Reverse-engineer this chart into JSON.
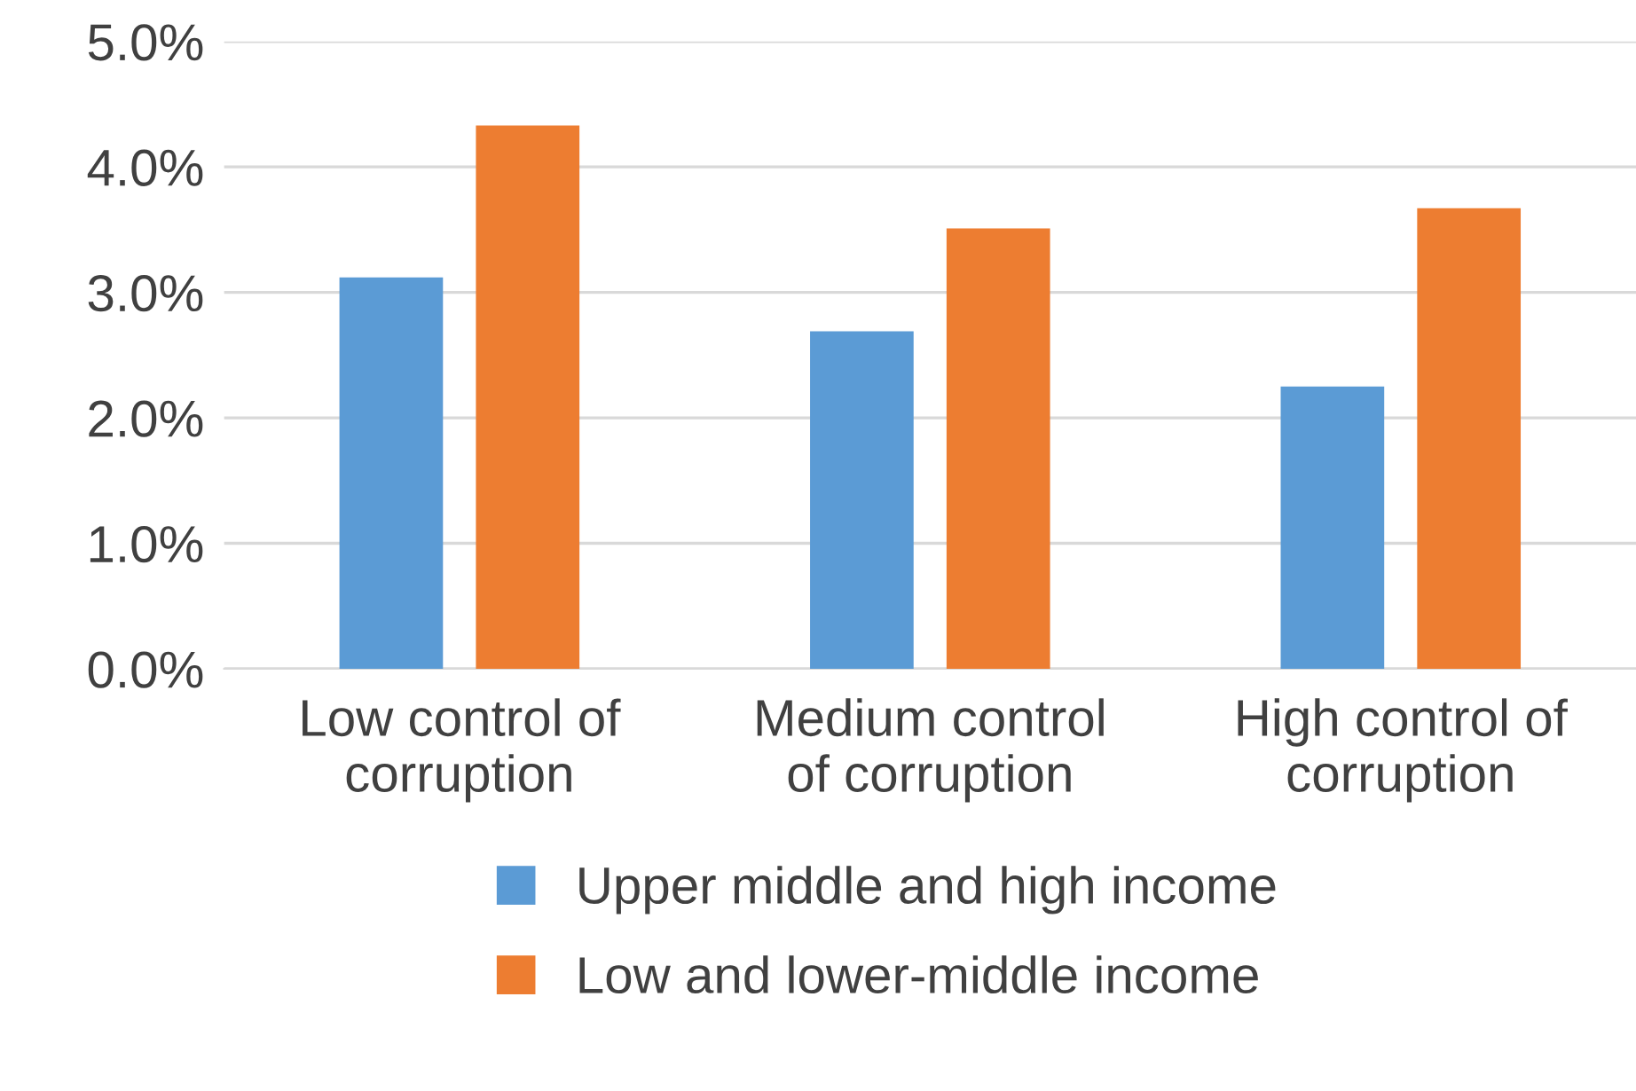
{
  "chart_data": {
    "type": "bar",
    "categories": [
      "Low control of\ncorruption",
      "Medium control\nof corruption",
      "High control of\ncorruption"
    ],
    "series": [
      {
        "name": "Upper middle and high income",
        "color": "#5b9bd5",
        "values": [
          3.12,
          2.69,
          2.25
        ]
      },
      {
        "name": "Low and lower-middle income",
        "color": "#ed7d31",
        "values": [
          4.33,
          3.51,
          3.67
        ]
      }
    ],
    "ylim": [
      0,
      5
    ],
    "yticks": [
      {
        "value": 0,
        "label": "0.0%"
      },
      {
        "value": 1,
        "label": "1.0%"
      },
      {
        "value": 2,
        "label": "2.0%"
      },
      {
        "value": 3,
        "label": "3.0%"
      },
      {
        "value": 4,
        "label": "4.0%"
      },
      {
        "value": 5,
        "label": "5.0%"
      }
    ],
    "grid": "y",
    "legend": "bottom"
  }
}
